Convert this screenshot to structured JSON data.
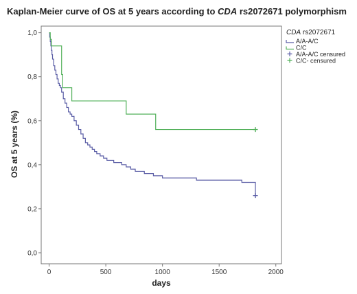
{
  "chart_data": {
    "type": "line",
    "title": {
      "prefix": "Kaplan-Meier curve of OS at 5 years according to ",
      "italic": "CDA",
      "suffix": " rs2072671 polymorphism"
    },
    "xlabel": "days",
    "ylabel": "OS at 5 years (%)",
    "xlim": [
      -70,
      2050
    ],
    "ylim": [
      -0.05,
      1.03
    ],
    "x_ticks": [
      0,
      500,
      1000,
      1500,
      2000
    ],
    "x_tick_labels": [
      "0",
      "500",
      "1000",
      "1500",
      "2000"
    ],
    "y_ticks": [
      0,
      0.2,
      0.4,
      0.6,
      0.8,
      1.0
    ],
    "y_tick_labels": [
      "0,0",
      "0,2",
      "0,4",
      "0,6",
      "0,8",
      "1,0"
    ],
    "legend": {
      "title_italic": "CDA",
      "title_rest": " rs2072671",
      "placement": "right",
      "entries": [
        "A/A-A/C",
        "C/C",
        "A/A-A/C censured",
        "C/C- censured"
      ]
    },
    "colors": {
      "A/A-A/C": "#5b5ea6",
      "C/C": "#52b05a"
    },
    "series": [
      {
        "name": "A/A-A/C",
        "step": true,
        "x": [
          0,
          5,
          10,
          15,
          20,
          25,
          30,
          40,
          50,
          60,
          70,
          80,
          90,
          100,
          110,
          125,
          140,
          155,
          170,
          185,
          200,
          220,
          240,
          260,
          280,
          300,
          320,
          340,
          360,
          380,
          400,
          420,
          450,
          480,
          510,
          540,
          570,
          600,
          640,
          680,
          720,
          760,
          800,
          840,
          880,
          920,
          960,
          1000,
          1100,
          1200,
          1300,
          1400,
          1500,
          1600,
          1700,
          1820,
          1820
        ],
        "y": [
          1.0,
          0.98,
          0.96,
          0.94,
          0.92,
          0.9,
          0.88,
          0.85,
          0.83,
          0.81,
          0.79,
          0.77,
          0.76,
          0.75,
          0.73,
          0.7,
          0.68,
          0.66,
          0.64,
          0.63,
          0.62,
          0.6,
          0.58,
          0.56,
          0.54,
          0.52,
          0.5,
          0.49,
          0.48,
          0.47,
          0.46,
          0.45,
          0.44,
          0.43,
          0.42,
          0.42,
          0.41,
          0.41,
          0.4,
          0.39,
          0.38,
          0.37,
          0.37,
          0.36,
          0.36,
          0.35,
          0.35,
          0.34,
          0.34,
          0.34,
          0.33,
          0.33,
          0.33,
          0.33,
          0.32,
          0.32,
          0.26
        ]
      },
      {
        "name": "C/C",
        "step": true,
        "x": [
          0,
          10,
          20,
          30,
          80,
          110,
          120,
          150,
          200,
          680,
          940,
          1820
        ],
        "y": [
          1.0,
          0.97,
          0.94,
          0.94,
          0.94,
          0.81,
          0.75,
          0.75,
          0.69,
          0.63,
          0.56,
          0.56
        ]
      }
    ],
    "censored": [
      {
        "name": "A/A-A/C censured",
        "x": [
          1820
        ],
        "y": [
          0.26
        ]
      },
      {
        "name": "C/C- censured",
        "x": [
          1820
        ],
        "y": [
          0.56
        ]
      }
    ]
  }
}
